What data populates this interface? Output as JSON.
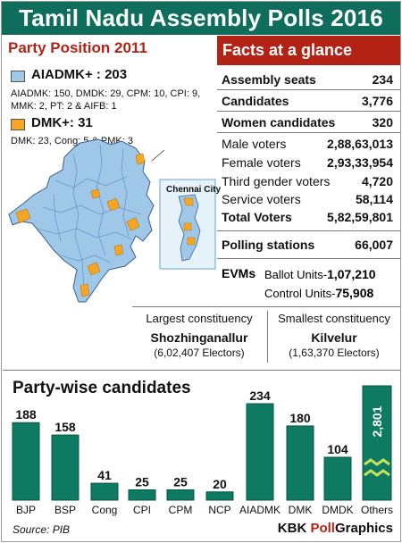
{
  "header": {
    "title": "Tamil Nadu Assembly Polls 2016"
  },
  "party_position": {
    "title": "Party Position 2011",
    "groups": [
      {
        "label": "AIADMK+ : 203",
        "detail_line1": "AIADMK: 150, DMDK: 29, CPM: 10, CPI: 9,",
        "detail_line2": "MMK: 2, PT: 2  & AIFB: 1",
        "color": "#9fc7e8"
      },
      {
        "label": "DMK+: 31",
        "detail_line1": "DMK: 23, Cong: 5 & PMK: 3",
        "color": "#f6a623"
      }
    ]
  },
  "map": {
    "inset_label": "Chennai City",
    "colors": {
      "land": "#9fc7e8",
      "water": "#ffffff",
      "dmk": "#f6a623"
    }
  },
  "facts": {
    "title": "Facts at a glance",
    "rows": [
      {
        "label": "Assembly seats",
        "value": "234"
      },
      {
        "label": "Candidates",
        "value": "3,776"
      },
      {
        "label": "Women candidates",
        "value": "320"
      },
      {
        "label": "Male voters",
        "value": "2,88,63,013"
      },
      {
        "label": "Female voters",
        "value": "2,93,33,954"
      },
      {
        "label": "Third gender voters",
        "value": "4,720"
      },
      {
        "label": "Service voters",
        "value": "58,114"
      },
      {
        "label": "Total Voters",
        "value": "5,82,59,801"
      },
      {
        "label": "Polling stations",
        "value": "66,007"
      }
    ],
    "evm": {
      "label": "EVMs",
      "ballot_label": "Ballot Units-",
      "ballot_value": "1,07,210",
      "control_label": "Control Units-",
      "control_value": "75,908"
    }
  },
  "constituencies": {
    "largest": {
      "heading": "Largest constituency",
      "name": "Shozhinganallur",
      "electors": "(6,02,407 Electors)"
    },
    "smallest": {
      "heading": "Smallest constituency",
      "name": "Kilvelur",
      "electors": "(1,63,370 Electors)"
    }
  },
  "chart_data": {
    "type": "bar",
    "title": "Party-wise candidates",
    "categories": [
      "BJP",
      "BSP",
      "Cong",
      "CPI",
      "CPM",
      "NCP",
      "AIADMK",
      "DMK",
      "DMDK",
      "Others"
    ],
    "values": [
      188,
      158,
      41,
      25,
      25,
      20,
      234,
      180,
      104,
      2801
    ],
    "value_labels": [
      "188",
      "158",
      "41",
      "25",
      "25",
      "20",
      "234",
      "180",
      "104",
      "2,801"
    ],
    "axis_break": "Others",
    "ylim": [
      0,
      234
    ],
    "colors": {
      "bar": "#0f7a62",
      "bar_edge": "#0a5546",
      "break_mark": "#c7e25a"
    }
  },
  "footer": {
    "source": "Source: PIB",
    "brand_a": "KBK ",
    "brand_b": "Poll",
    "brand_c": "Graphics"
  }
}
